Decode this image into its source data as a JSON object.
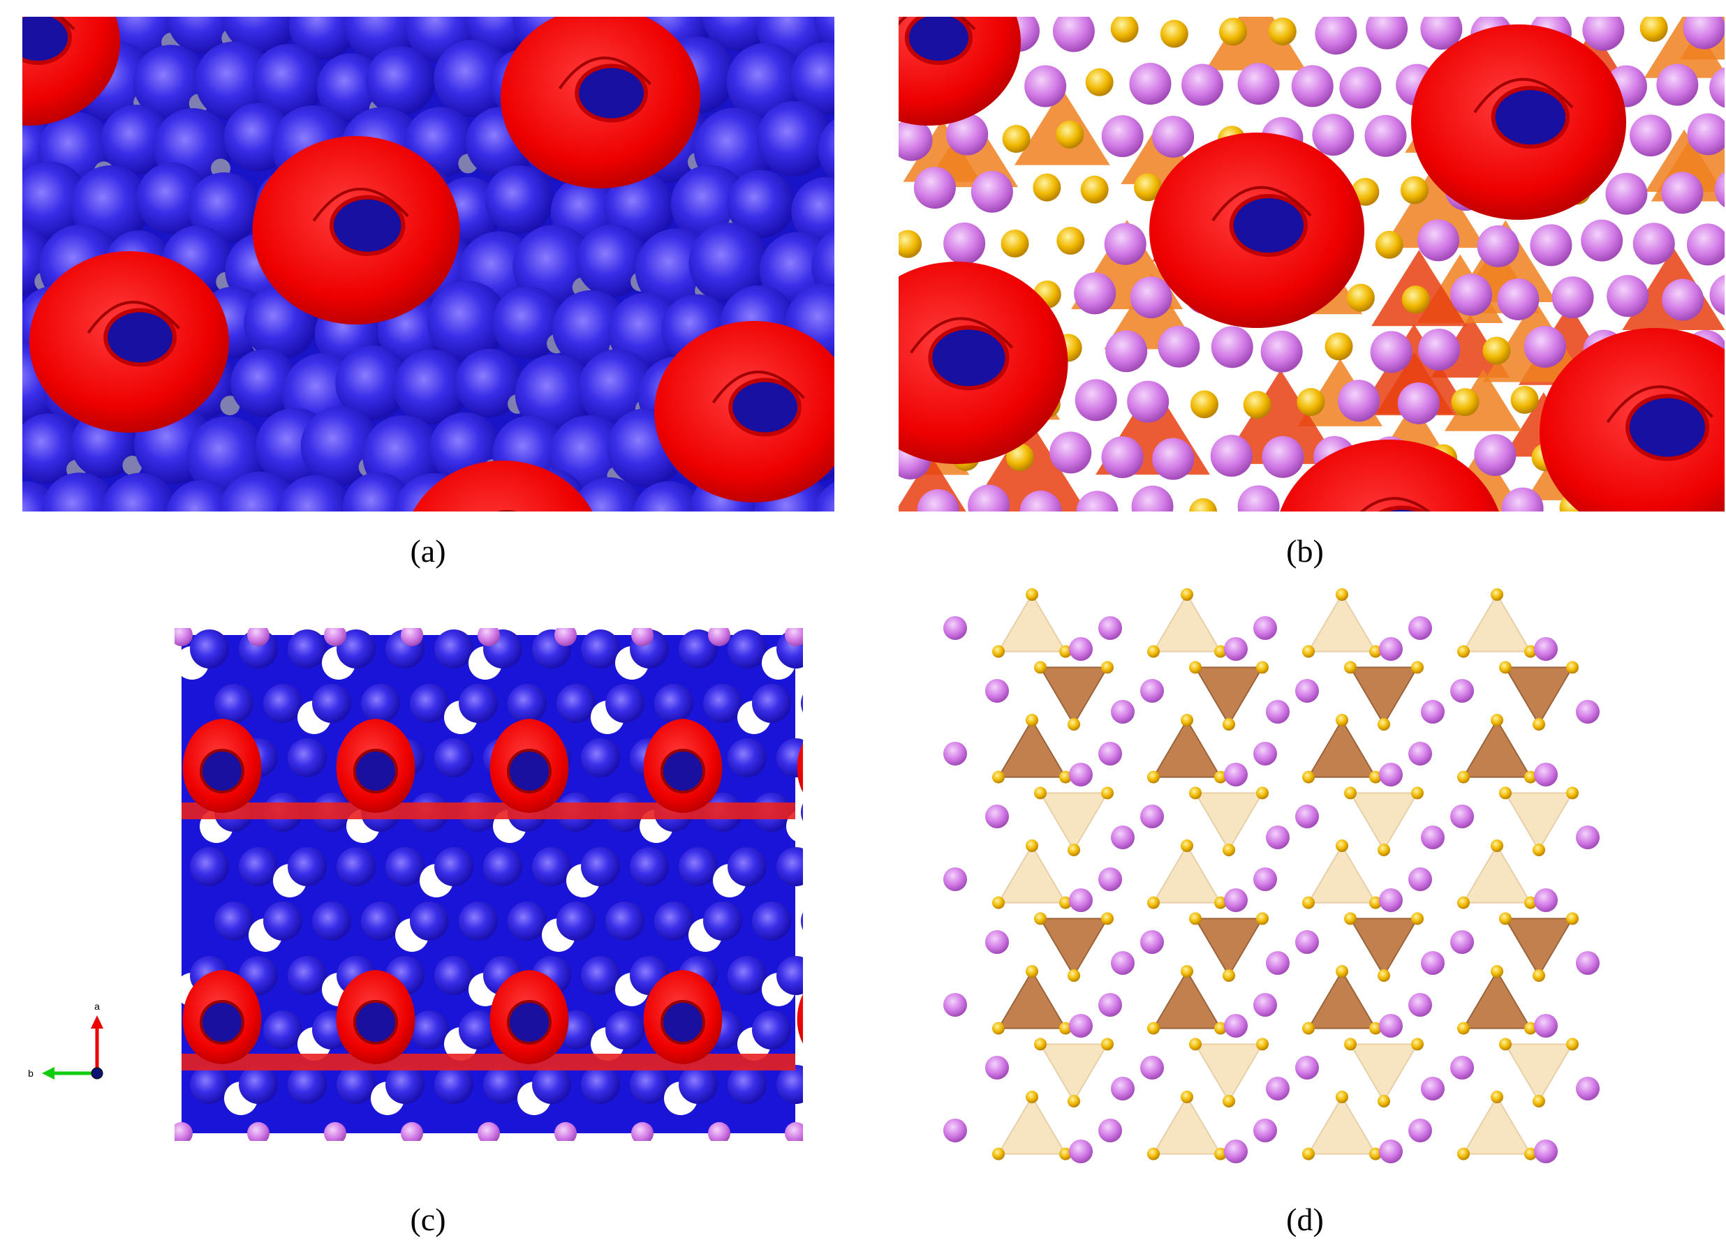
{
  "panels": [
    {
      "label": "(a)"
    },
    {
      "label": "(b)"
    },
    {
      "label": "(c)"
    },
    {
      "label": "(d)"
    }
  ],
  "axis_indicator": {
    "a": "a",
    "b": "b"
  }
}
